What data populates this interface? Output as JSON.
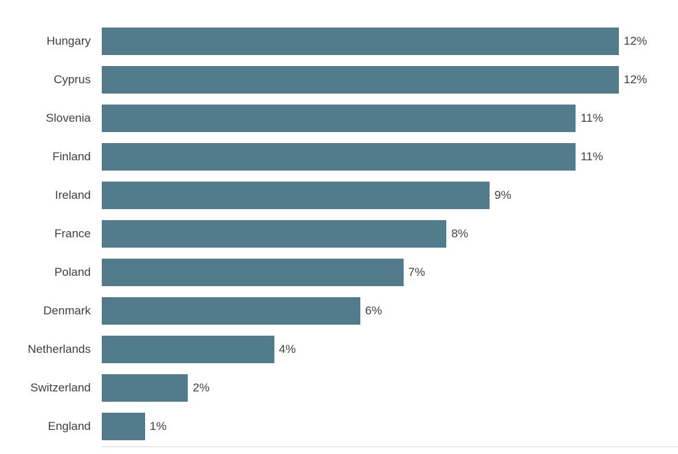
{
  "chart_data": {
    "type": "bar",
    "orientation": "horizontal",
    "title": "",
    "xlabel": "",
    "ylabel": "",
    "categories": [
      "Hungary",
      "Cyprus",
      "Slovenia",
      "Finland",
      "Ireland",
      "France",
      "Poland",
      "Denmark",
      "Netherlands",
      "Switzerland",
      "England"
    ],
    "values": [
      12,
      12,
      11,
      11,
      9,
      8,
      7,
      6,
      4,
      2,
      1
    ],
    "value_labels": [
      "12%",
      "12%",
      "11%",
      "11%",
      "9%",
      "8%",
      "7%",
      "6%",
      "4%",
      "2%",
      "1%"
    ],
    "xlim": [
      0,
      12
    ],
    "grid": false,
    "legend": false,
    "bar_color": "#527b8b",
    "text_color": "#3f3f3f",
    "baseline_color": "#d9d9d9"
  }
}
